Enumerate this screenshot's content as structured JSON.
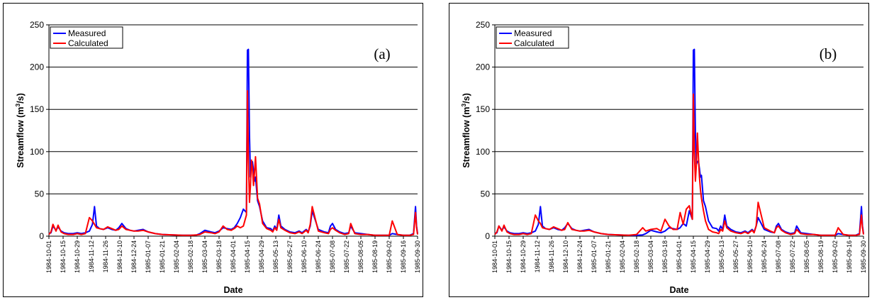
{
  "colors": {
    "measured": "#0000ff",
    "calculated": "#ff0000",
    "grid": "#000000"
  },
  "chart_data": [
    {
      "type": "line",
      "panel_label": "(a)",
      "xlabel": "Date",
      "ylabel": "Streamflow (m³/s)",
      "ylabel_parts": {
        "pre": "Streamflow (m",
        "sup": "3",
        "post": "/s)"
      },
      "ylim": [
        0,
        250
      ],
      "yticks": [
        "0",
        "50",
        "100",
        "150",
        "200",
        "250"
      ],
      "grid": true,
      "legend": "top-left",
      "xlim": [
        "1984-10-01",
        "1985-09-30"
      ],
      "xtick_labels": [
        "1984-10-01",
        "1984-10-15",
        "1984-10-29",
        "1984-11-12",
        "1984-11-26",
        "1984-12-10",
        "1984-12-24",
        "1985-01-07",
        "1985-01-21",
        "1985-02-04",
        "1985-02-18",
        "1985-03-04",
        "1985-03-18",
        "1985-04-01",
        "1985-04-15",
        "1985-04-29",
        "1985-05-13",
        "1985-05-27",
        "1985-06-10",
        "1985-06-24",
        "1985-07-08",
        "1985-07-22",
        "1985-08-05",
        "1985-08-19",
        "1985-09-02",
        "1985-09-16",
        "1985-09-30"
      ],
      "series": [
        {
          "name": "Measured",
          "color": "#0000ff",
          "x": [
            "1984-10-01",
            "1984-10-03",
            "1984-10-05",
            "1984-10-08",
            "1984-10-10",
            "1984-10-13",
            "1984-10-16",
            "1984-10-20",
            "1984-10-25",
            "1984-10-29",
            "1984-11-02",
            "1984-11-06",
            "1984-11-10",
            "1984-11-13",
            "1984-11-15",
            "1984-11-17",
            "1984-11-20",
            "1984-11-24",
            "1984-11-28",
            "1984-12-02",
            "1984-12-06",
            "1984-12-09",
            "1984-12-12",
            "1984-12-16",
            "1984-12-20",
            "1984-12-24",
            "1984-12-28",
            "1985-01-02",
            "1985-01-07",
            "1985-01-14",
            "1985-01-21",
            "1985-02-01",
            "1985-02-10",
            "1985-02-18",
            "1985-02-24",
            "1985-02-27",
            "1985-03-04",
            "1985-03-10",
            "1985-03-14",
            "1985-03-18",
            "1985-03-22",
            "1985-03-26",
            "1985-03-30",
            "1985-04-02",
            "1985-04-05",
            "1985-04-08",
            "1985-04-11",
            "1985-04-14",
            "1985-04-15",
            "1985-04-16",
            "1985-04-17",
            "1985-04-18",
            "1985-04-19",
            "1985-04-20",
            "1985-04-21",
            "1985-04-22",
            "1985-04-23",
            "1985-04-25",
            "1985-04-27",
            "1985-04-30",
            "1985-05-04",
            "1985-05-08",
            "1985-05-10",
            "1985-05-12",
            "1985-05-14",
            "1985-05-16",
            "1985-05-18",
            "1985-05-22",
            "1985-05-27",
            "1985-06-01",
            "1985-06-05",
            "1985-06-08",
            "1985-06-12",
            "1985-06-14",
            "1985-06-16",
            "1985-06-18",
            "1985-06-24",
            "1985-06-30",
            "1985-07-04",
            "1985-07-06",
            "1985-07-08",
            "1985-07-11",
            "1985-07-15",
            "1985-07-20",
            "1985-07-24",
            "1985-07-26",
            "1985-07-30",
            "1985-08-05",
            "1985-08-12",
            "1985-08-19",
            "1985-08-25",
            "1985-08-30",
            "1985-09-02",
            "1985-09-05",
            "1985-09-10",
            "1985-09-16",
            "1985-09-22",
            "1985-09-26",
            "1985-09-28",
            "1985-09-29",
            "1985-09-30"
          ],
          "y": [
            3,
            4,
            12,
            7,
            11,
            6,
            4,
            3,
            3,
            4,
            3,
            4,
            6,
            14,
            35,
            12,
            9,
            8,
            10,
            8,
            7,
            10,
            15,
            9,
            7,
            6,
            7,
            8,
            5,
            3,
            2,
            1.5,
            1,
            1,
            1.5,
            3,
            7,
            5,
            4,
            6,
            10,
            9,
            8,
            10,
            15,
            22,
            32,
            28,
            220,
            221,
            120,
            70,
            85,
            88,
            78,
            65,
            70,
            42,
            35,
            18,
            10,
            9,
            6,
            12,
            8,
            25,
            12,
            8,
            5,
            4,
            6,
            4,
            8,
            5,
            12,
            30,
            8,
            5,
            4,
            12,
            15,
            8,
            5,
            3,
            4,
            12,
            4,
            3,
            2,
            1,
            1,
            1,
            1,
            3,
            2,
            1,
            1,
            3,
            35,
            12,
            3
          ]
        },
        {
          "name": "Calculated",
          "color": "#ff0000",
          "x": [
            "1984-10-01",
            "1984-10-03",
            "1984-10-05",
            "1984-10-08",
            "1984-10-10",
            "1984-10-13",
            "1984-10-16",
            "1984-10-20",
            "1984-10-25",
            "1984-10-29",
            "1984-11-02",
            "1984-11-06",
            "1984-11-10",
            "1984-11-13",
            "1984-11-15",
            "1984-11-17",
            "1984-11-20",
            "1984-11-24",
            "1984-11-28",
            "1984-12-02",
            "1984-12-06",
            "1984-12-09",
            "1984-12-12",
            "1984-12-16",
            "1984-12-20",
            "1984-12-24",
            "1984-12-28",
            "1985-01-02",
            "1985-01-07",
            "1985-01-14",
            "1985-01-21",
            "1985-02-01",
            "1985-02-10",
            "1985-02-18",
            "1985-02-24",
            "1985-02-27",
            "1985-03-04",
            "1985-03-10",
            "1985-03-14",
            "1985-03-18",
            "1985-03-22",
            "1985-03-26",
            "1985-03-30",
            "1985-04-02",
            "1985-04-05",
            "1985-04-08",
            "1985-04-11",
            "1985-04-14",
            "1985-04-15",
            "1985-04-16",
            "1985-04-17",
            "1985-04-18",
            "1985-04-19",
            "1985-04-20",
            "1985-04-21",
            "1985-04-22",
            "1985-04-23",
            "1985-04-25",
            "1985-04-27",
            "1985-04-30",
            "1985-05-04",
            "1985-05-08",
            "1985-05-10",
            "1985-05-12",
            "1985-05-14",
            "1985-05-16",
            "1985-05-18",
            "1985-05-22",
            "1985-05-27",
            "1985-06-01",
            "1985-06-05",
            "1985-06-08",
            "1985-06-12",
            "1985-06-14",
            "1985-06-16",
            "1985-06-18",
            "1985-06-24",
            "1985-06-30",
            "1985-07-04",
            "1985-07-06",
            "1985-07-08",
            "1985-07-11",
            "1985-07-15",
            "1985-07-20",
            "1985-07-24",
            "1985-07-26",
            "1985-07-30",
            "1985-08-05",
            "1985-08-12",
            "1985-08-19",
            "1985-08-25",
            "1985-08-30",
            "1985-09-02",
            "1985-09-05",
            "1985-09-10",
            "1985-09-16",
            "1985-09-22",
            "1985-09-26",
            "1985-09-28",
            "1985-09-29",
            "1985-09-30"
          ],
          "y": [
            2,
            5,
            14,
            6,
            13,
            5,
            3,
            2,
            2,
            3,
            2,
            3,
            22,
            18,
            14,
            10,
            9,
            8,
            11,
            9,
            7,
            8,
            12,
            8,
            7,
            6,
            6,
            7,
            5,
            3,
            2,
            1.5,
            1,
            1,
            1.5,
            2,
            5,
            4,
            3,
            5,
            12,
            8,
            7,
            9,
            12,
            10,
            12,
            25,
            172,
            90,
            40,
            60,
            90,
            80,
            60,
            75,
            94,
            45,
            38,
            15,
            9,
            7,
            5,
            10,
            7,
            20,
            10,
            7,
            4,
            3,
            5,
            3,
            7,
            4,
            14,
            35,
            6,
            4,
            3,
            8,
            10,
            7,
            4,
            2,
            3,
            15,
            3,
            2,
            2,
            1,
            1,
            1,
            1,
            18,
            2,
            1,
            1,
            2,
            28,
            10,
            2
          ]
        }
      ]
    },
    {
      "type": "line",
      "panel_label": "(b)",
      "xlabel": "Date",
      "ylabel": "Streamflow (m³/s)",
      "ylabel_parts": {
        "pre": "Streamflow (m",
        "sup": "3",
        "post": "/s)"
      },
      "ylim": [
        0,
        250
      ],
      "yticks": [
        "0",
        "50",
        "100",
        "150",
        "200",
        "250"
      ],
      "grid": true,
      "legend": "top-left",
      "xlim": [
        "1984-10-01",
        "1985-09-30"
      ],
      "xtick_labels": [
        "1984-10-01",
        "1984-10-15",
        "1984-10-29",
        "1984-11-12",
        "1984-11-26",
        "1984-12-10",
        "1984-12-24",
        "1985-01-07",
        "1985-01-21",
        "1985-02-04",
        "1985-02-18",
        "1985-03-04",
        "1985-03-18",
        "1985-04-01",
        "1985-04-15",
        "1985-04-29",
        "1985-05-13",
        "1985-05-27",
        "1985-06-10",
        "1985-06-24",
        "1985-07-08",
        "1985-07-22",
        "1985-08-05",
        "1985-08-19",
        "1985-09-02",
        "1985-09-16",
        "1985-09-30"
      ],
      "series": [
        {
          "name": "Measured",
          "color": "#0000ff",
          "x": [
            "1984-10-01",
            "1984-10-03",
            "1984-10-05",
            "1984-10-08",
            "1984-10-10",
            "1984-10-13",
            "1984-10-16",
            "1984-10-20",
            "1984-10-25",
            "1984-10-29",
            "1984-11-02",
            "1984-11-06",
            "1984-11-10",
            "1984-11-13",
            "1984-11-15",
            "1984-11-17",
            "1984-11-20",
            "1984-11-24",
            "1984-11-28",
            "1984-12-02",
            "1984-12-06",
            "1984-12-09",
            "1984-12-12",
            "1984-12-16",
            "1984-12-20",
            "1984-12-24",
            "1984-12-28",
            "1985-01-02",
            "1985-01-07",
            "1985-01-14",
            "1985-01-21",
            "1985-02-01",
            "1985-02-10",
            "1985-02-18",
            "1985-02-24",
            "1985-02-27",
            "1985-03-04",
            "1985-03-10",
            "1985-03-14",
            "1985-03-18",
            "1985-03-22",
            "1985-03-26",
            "1985-03-30",
            "1985-04-02",
            "1985-04-05",
            "1985-04-08",
            "1985-04-11",
            "1985-04-14",
            "1985-04-15",
            "1985-04-16",
            "1985-04-17",
            "1985-04-18",
            "1985-04-19",
            "1985-04-20",
            "1985-04-21",
            "1985-04-22",
            "1985-04-23",
            "1985-04-25",
            "1985-04-27",
            "1985-04-30",
            "1985-05-04",
            "1985-05-08",
            "1985-05-10",
            "1985-05-12",
            "1985-05-14",
            "1985-05-16",
            "1985-05-18",
            "1985-05-22",
            "1985-05-27",
            "1985-06-01",
            "1985-06-05",
            "1985-06-08",
            "1985-06-12",
            "1985-06-14",
            "1985-06-16",
            "1985-06-18",
            "1985-06-24",
            "1985-06-30",
            "1985-07-04",
            "1985-07-06",
            "1985-07-08",
            "1985-07-11",
            "1985-07-15",
            "1985-07-20",
            "1985-07-24",
            "1985-07-26",
            "1985-07-30",
            "1985-08-05",
            "1985-08-12",
            "1985-08-19",
            "1985-08-25",
            "1985-08-30",
            "1985-09-02",
            "1985-09-05",
            "1985-09-10",
            "1985-09-16",
            "1985-09-22",
            "1985-09-26",
            "1985-09-28",
            "1985-09-29",
            "1985-09-30"
          ],
          "y": [
            3,
            4,
            12,
            7,
            11,
            6,
            4,
            3,
            3,
            4,
            3,
            4,
            6,
            14,
            35,
            12,
            9,
            8,
            10,
            8,
            7,
            10,
            15,
            9,
            7,
            6,
            7,
            8,
            5,
            3,
            2,
            1.5,
            1,
            1,
            1.5,
            3,
            7,
            5,
            4,
            6,
            10,
            9,
            8,
            10,
            15,
            12,
            30,
            20,
            220,
            221,
            120,
            85,
            88,
            89,
            80,
            70,
            72,
            42,
            35,
            18,
            10,
            9,
            6,
            12,
            8,
            25,
            12,
            8,
            5,
            4,
            6,
            4,
            8,
            5,
            12,
            22,
            8,
            5,
            4,
            12,
            15,
            8,
            5,
            3,
            4,
            12,
            4,
            3,
            2,
            1,
            1,
            1,
            1,
            3,
            2,
            1,
            1,
            3,
            35,
            12,
            3
          ]
        },
        {
          "name": "Calculated",
          "color": "#ff0000",
          "x": [
            "1984-10-01",
            "1984-10-03",
            "1984-10-05",
            "1984-10-08",
            "1984-10-10",
            "1984-10-13",
            "1984-10-16",
            "1984-10-20",
            "1984-10-25",
            "1984-10-29",
            "1984-11-02",
            "1984-11-06",
            "1984-11-10",
            "1984-11-13",
            "1984-11-15",
            "1984-11-17",
            "1984-11-20",
            "1984-11-24",
            "1984-11-28",
            "1984-12-02",
            "1984-12-06",
            "1984-12-09",
            "1984-12-12",
            "1984-12-16",
            "1984-12-20",
            "1984-12-24",
            "1984-12-28",
            "1985-01-02",
            "1985-01-07",
            "1985-01-14",
            "1985-01-21",
            "1985-02-01",
            "1985-02-10",
            "1985-02-18",
            "1985-02-24",
            "1985-02-27",
            "1985-03-04",
            "1985-03-10",
            "1985-03-14",
            "1985-03-18",
            "1985-03-22",
            "1985-03-26",
            "1985-03-30",
            "1985-04-02",
            "1985-04-05",
            "1985-04-08",
            "1985-04-11",
            "1985-04-14",
            "1985-04-15",
            "1985-04-16",
            "1985-04-17",
            "1985-04-18",
            "1985-04-19",
            "1985-04-20",
            "1985-04-21",
            "1985-04-22",
            "1985-04-23",
            "1985-04-25",
            "1985-04-27",
            "1985-04-30",
            "1985-05-04",
            "1985-05-08",
            "1985-05-10",
            "1985-05-12",
            "1985-05-14",
            "1985-05-16",
            "1985-05-18",
            "1985-05-22",
            "1985-05-27",
            "1985-06-01",
            "1985-06-05",
            "1985-06-08",
            "1985-06-12",
            "1985-06-14",
            "1985-06-16",
            "1985-06-18",
            "1985-06-24",
            "1985-06-30",
            "1985-07-04",
            "1985-07-06",
            "1985-07-08",
            "1985-07-11",
            "1985-07-15",
            "1985-07-20",
            "1985-07-24",
            "1985-07-26",
            "1985-07-30",
            "1985-08-05",
            "1985-08-12",
            "1985-08-19",
            "1985-08-25",
            "1985-08-30",
            "1985-09-02",
            "1985-09-05",
            "1985-09-10",
            "1985-09-16",
            "1985-09-22",
            "1985-09-26",
            "1985-09-28",
            "1985-09-29",
            "1985-09-30"
          ],
          "y": [
            2,
            5,
            12,
            6,
            13,
            5,
            3,
            2,
            2,
            3,
            2,
            3,
            25,
            18,
            15,
            10,
            9,
            8,
            11,
            9,
            7,
            8,
            16,
            8,
            7,
            6,
            6,
            7,
            5,
            3,
            2,
            1.5,
            1,
            2,
            10,
            6,
            8,
            9,
            6,
            20,
            12,
            8,
            8,
            28,
            14,
            32,
            36,
            20,
            168,
            100,
            65,
            85,
            122,
            95,
            70,
            55,
            45,
            30,
            18,
            8,
            5,
            4,
            3,
            8,
            6,
            18,
            10,
            6,
            4,
            3,
            5,
            3,
            7,
            4,
            12,
            40,
            10,
            6,
            4,
            10,
            12,
            7,
            4,
            2,
            3,
            8,
            3,
            2,
            2,
            1,
            1,
            1,
            1,
            10,
            2,
            1,
            1,
            2,
            25,
            10,
            2
          ]
        }
      ]
    }
  ]
}
